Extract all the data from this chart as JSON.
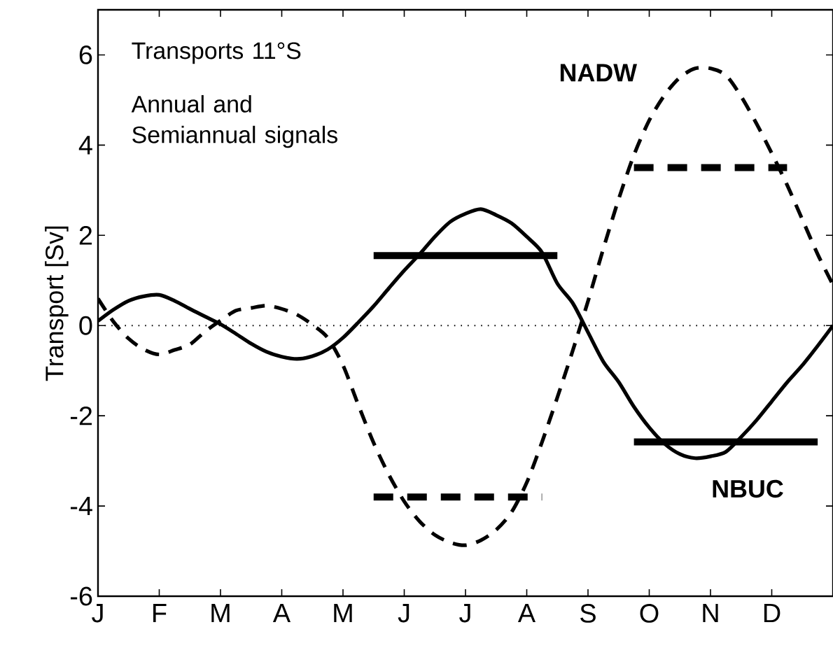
{
  "chart_data": {
    "type": "line",
    "ylabel": "Transport [Sv]",
    "annotations": [
      "Transports 11°S",
      "Annual and Semiannual signals"
    ],
    "categories": [
      "J",
      null,
      null,
      null,
      "F",
      null,
      null,
      null,
      "M",
      null,
      null,
      null,
      "A",
      null,
      null,
      null,
      "M",
      null,
      null,
      null,
      "J",
      null,
      null,
      null,
      "J",
      null,
      null,
      null,
      "A",
      null,
      null,
      null,
      "S",
      null,
      null,
      null,
      "O",
      null,
      null,
      null,
      "N",
      null,
      null,
      null,
      "D",
      null,
      null,
      null,
      null
    ],
    "ylim": [
      -6,
      7
    ],
    "yticks": [
      -6,
      -4,
      -2,
      0,
      2,
      4,
      6
    ],
    "ref_lines": [
      {
        "axis": "y",
        "value": 0,
        "line_style": "dotted",
        "color": "#000000"
      }
    ],
    "series": [
      {
        "name": "NBUC",
        "color": "#000000",
        "line_style": "solid",
        "values": [
          0.1,
          0.35,
          0.55,
          0.65,
          0.68,
          0.55,
          0.37,
          0.2,
          0.03,
          -0.18,
          -0.4,
          -0.58,
          -0.69,
          -0.74,
          -0.68,
          -0.53,
          -0.27,
          0.07,
          0.43,
          0.83,
          1.22,
          1.58,
          1.97,
          2.3,
          2.48,
          2.58,
          2.45,
          2.27,
          1.97,
          1.62,
          0.93,
          0.5,
          -0.15,
          -0.8,
          -1.25,
          -1.8,
          -2.26,
          -2.62,
          -2.85,
          -2.94,
          -2.9,
          -2.8,
          -2.47,
          -2.1,
          -1.68,
          -1.26,
          -0.88,
          -0.45,
          0.0
        ]
      },
      {
        "name": "NADW",
        "color": "#000000",
        "line_style": "dashed",
        "values": [
          0.6,
          0.09,
          -0.29,
          -0.53,
          -0.64,
          -0.54,
          -0.42,
          -0.13,
          0.11,
          0.33,
          0.39,
          0.44,
          0.37,
          0.24,
          0.02,
          -0.27,
          -0.88,
          -1.76,
          -2.6,
          -3.31,
          -3.9,
          -4.34,
          -4.64,
          -4.81,
          -4.87,
          -4.76,
          -4.53,
          -4.14,
          -3.48,
          -2.58,
          -1.59,
          -0.56,
          0.54,
          1.7,
          2.8,
          3.78,
          4.55,
          5.11,
          5.5,
          5.7,
          5.7,
          5.55,
          5.08,
          4.48,
          3.82,
          3.12,
          2.35,
          1.58,
          0.9
        ]
      },
      {
        "color": "#000000",
        "line_style": "solid",
        "values": [
          null,
          null,
          null,
          null,
          null,
          null,
          null,
          null,
          null,
          null,
          null,
          null,
          null,
          null,
          null,
          null,
          null,
          null,
          1.55,
          1.55,
          1.55,
          1.55,
          1.55,
          1.55,
          1.55,
          1.55,
          1.55,
          1.55,
          1.55,
          1.55,
          1.55,
          null,
          null,
          null,
          null,
          -2.58,
          -2.58,
          -2.58,
          -2.58,
          -2.58,
          -2.58,
          -2.58,
          -2.58,
          -2.58,
          -2.58,
          -2.58,
          -2.58,
          -2.58,
          null
        ]
      },
      {
        "color": "#000000",
        "line_style": "dashed",
        "values": [
          null,
          null,
          null,
          null,
          null,
          null,
          null,
          null,
          null,
          null,
          null,
          null,
          null,
          null,
          null,
          null,
          null,
          null,
          -3.8,
          -3.8,
          -3.8,
          -3.8,
          -3.8,
          -3.8,
          -3.8,
          -3.8,
          -3.8,
          -3.8,
          -3.8,
          -3.8,
          null,
          null,
          null,
          null,
          null,
          3.5,
          3.5,
          3.5,
          3.5,
          3.5,
          3.5,
          3.5,
          3.5,
          3.5,
          3.5,
          3.5,
          null,
          null,
          null
        ]
      }
    ]
  }
}
